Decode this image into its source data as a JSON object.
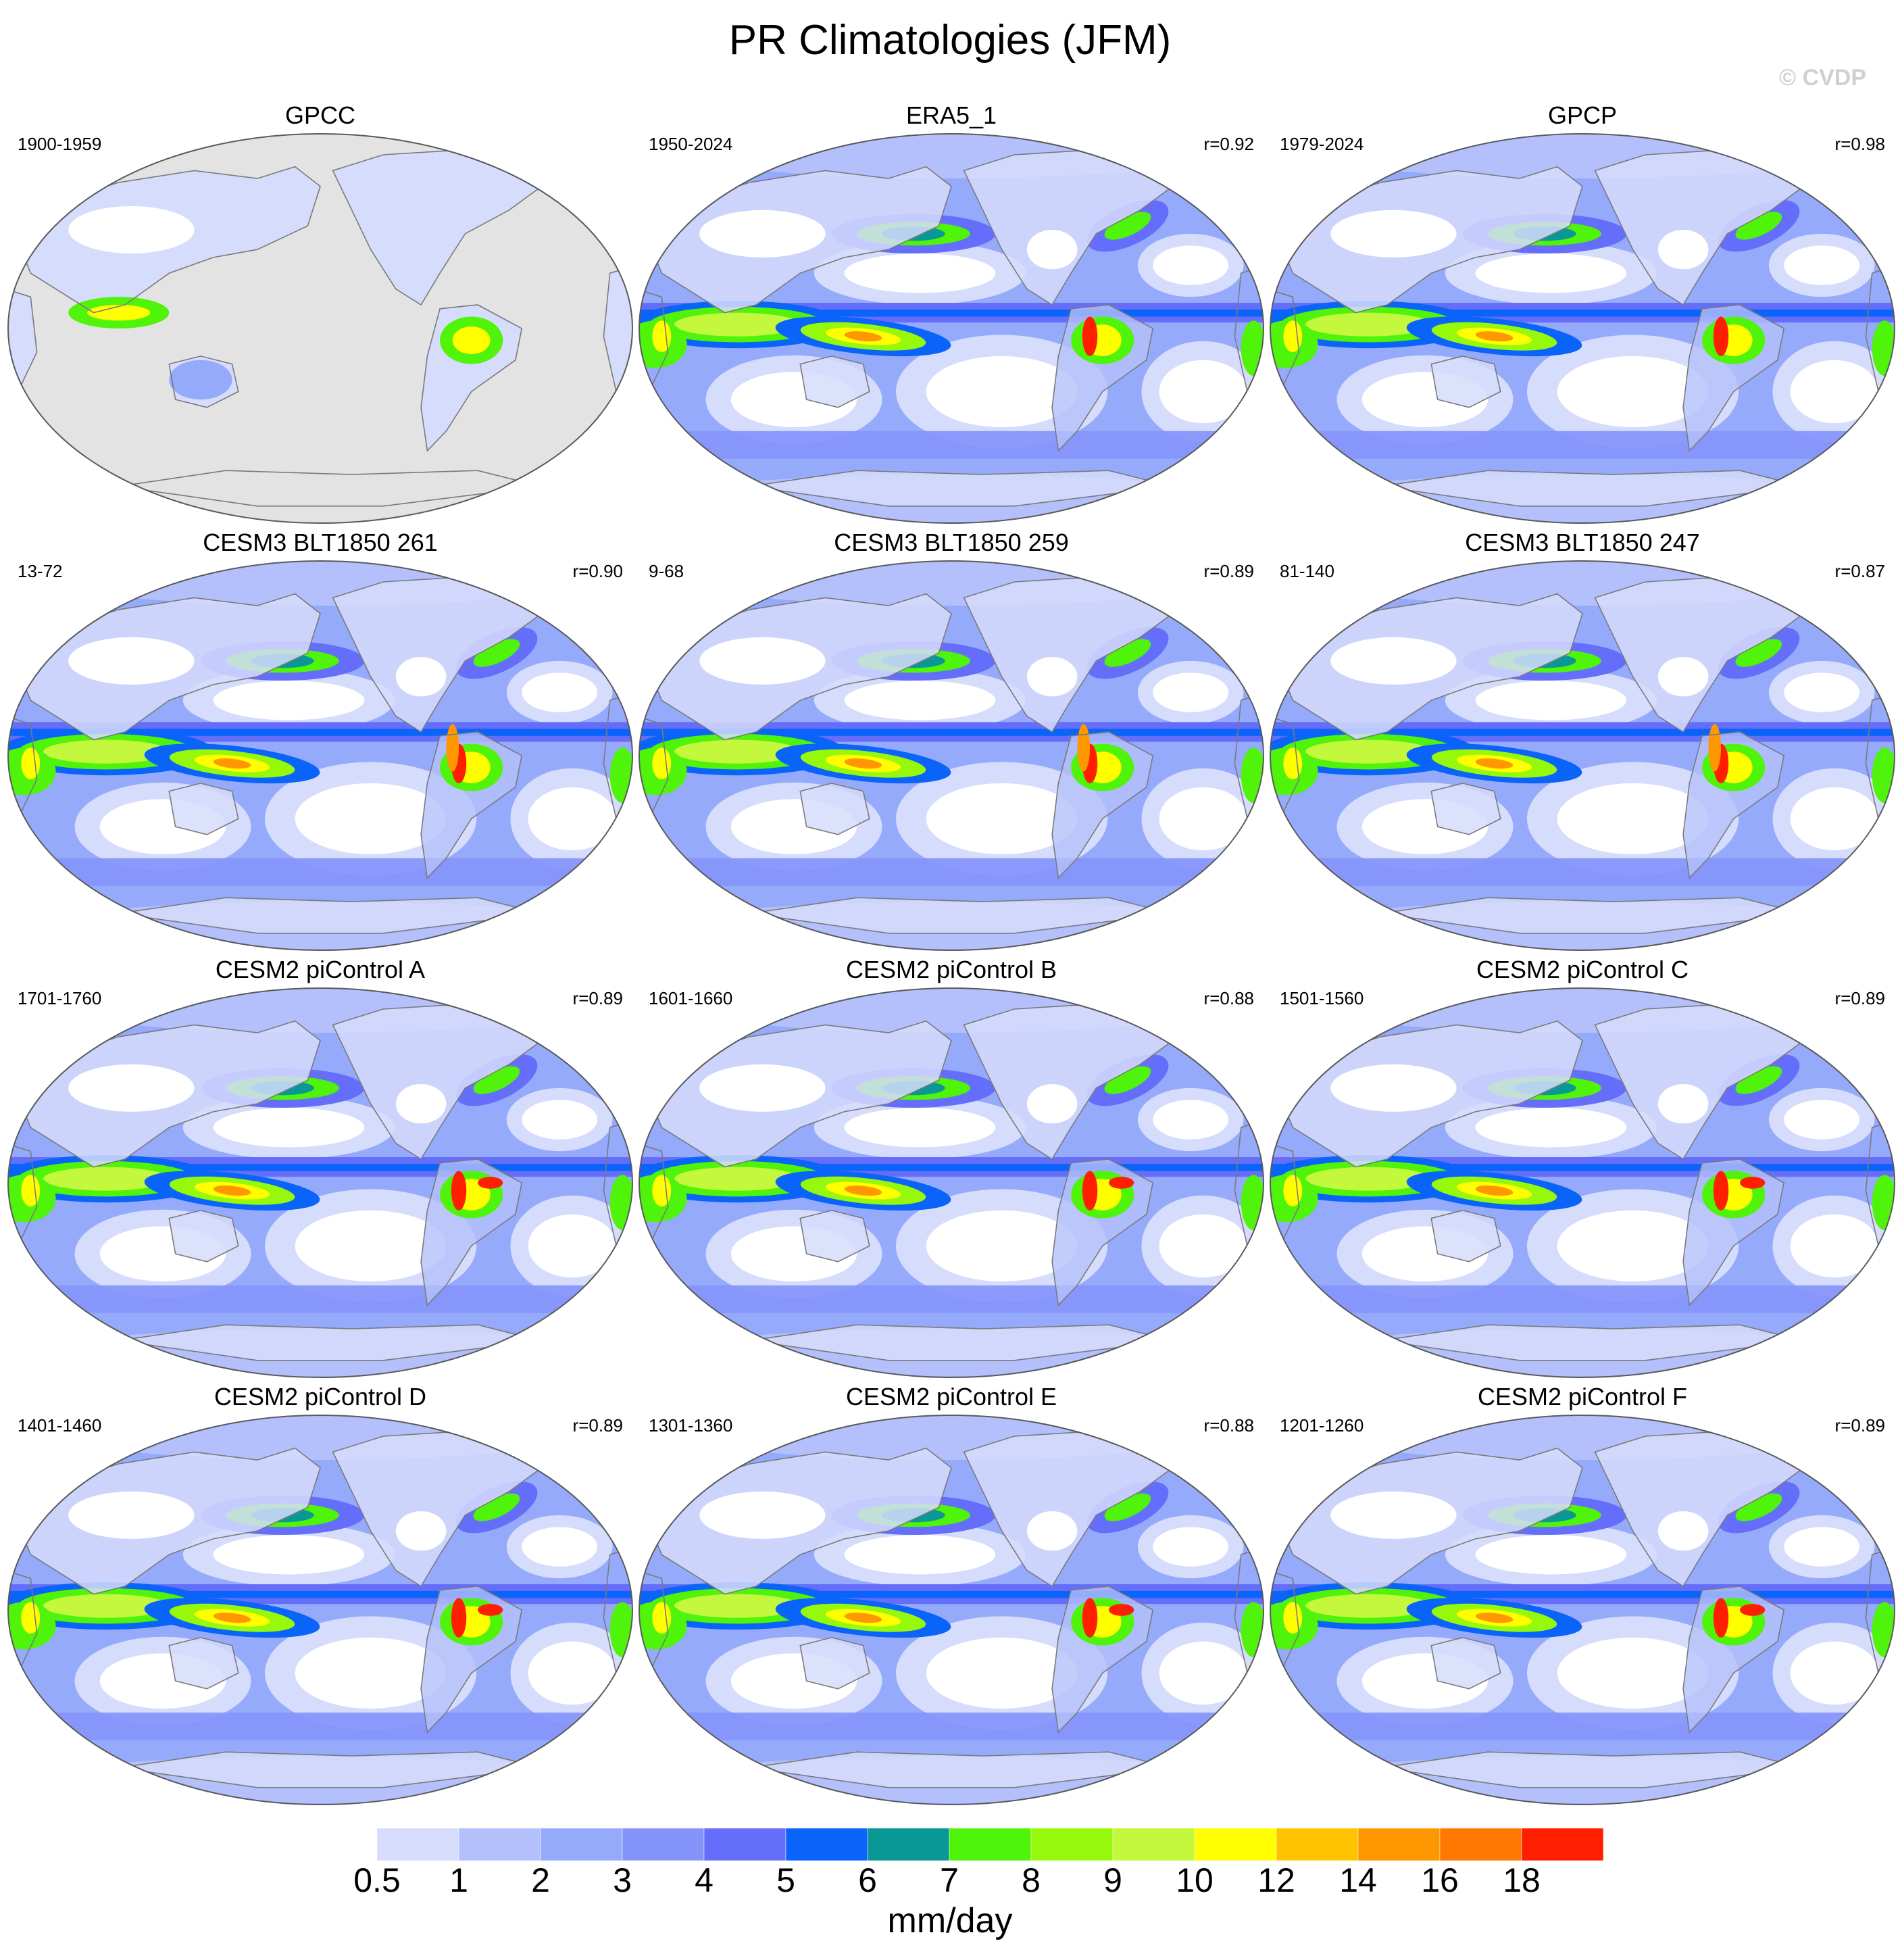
{
  "title": "PR Climatologies (JFM)",
  "watermark": "© CVDP",
  "panels": [
    {
      "name": "GPCC",
      "period": "1900-1959",
      "corr": "",
      "style": "land-only"
    },
    {
      "name": "ERA5_1",
      "period": "1950-2024",
      "corr": "r=0.92",
      "style": "reanalysis"
    },
    {
      "name": "GPCP",
      "period": "1979-2024",
      "corr": "r=0.98",
      "style": "observation"
    },
    {
      "name": "CESM3 BLT1850 261",
      "period": "13-72",
      "corr": "r=0.90",
      "style": "cesm3"
    },
    {
      "name": "CESM3 BLT1850 259",
      "period": "9-68",
      "corr": "r=0.89",
      "style": "cesm3"
    },
    {
      "name": "CESM3 BLT1850 247",
      "period": "81-140",
      "corr": "r=0.87",
      "style": "cesm3"
    },
    {
      "name": "CESM2 piControl A",
      "period": "1701-1760",
      "corr": "r=0.89",
      "style": "cesm2"
    },
    {
      "name": "CESM2 piControl B",
      "period": "1601-1660",
      "corr": "r=0.88",
      "style": "cesm2"
    },
    {
      "name": "CESM2 piControl C",
      "period": "1501-1560",
      "corr": "r=0.89",
      "style": "cesm2"
    },
    {
      "name": "CESM2 piControl D",
      "period": "1401-1460",
      "corr": "r=0.89",
      "style": "cesm2"
    },
    {
      "name": "CESM2 piControl E",
      "period": "1301-1360",
      "corr": "r=0.88",
      "style": "cesm2"
    },
    {
      "name": "CESM2 piControl F",
      "period": "1201-1260",
      "corr": "r=0.89",
      "style": "cesm2"
    }
  ],
  "colorbar": {
    "units": "mm/day",
    "levels": [
      "0.5",
      "1",
      "2",
      "3",
      "4",
      "5",
      "6",
      "7",
      "8",
      "9",
      "10",
      "12",
      "14",
      "16",
      "18"
    ],
    "colors": [
      "#ffffff",
      "#d6dcfb",
      "#b4c0fb",
      "#95aafb",
      "#8494fb",
      "#646efa",
      "#0a64fa",
      "#0a9896",
      "#50f30a",
      "#96f80a",
      "#c3f83c",
      "#ffff00",
      "#ffc300",
      "#ff9800",
      "#ff7800",
      "#ff1e00"
    ]
  },
  "map_colors": {
    "land_mask": "#e3e3e3",
    "coastline": "#7a7a7a",
    "border": "#5a5a5a"
  }
}
